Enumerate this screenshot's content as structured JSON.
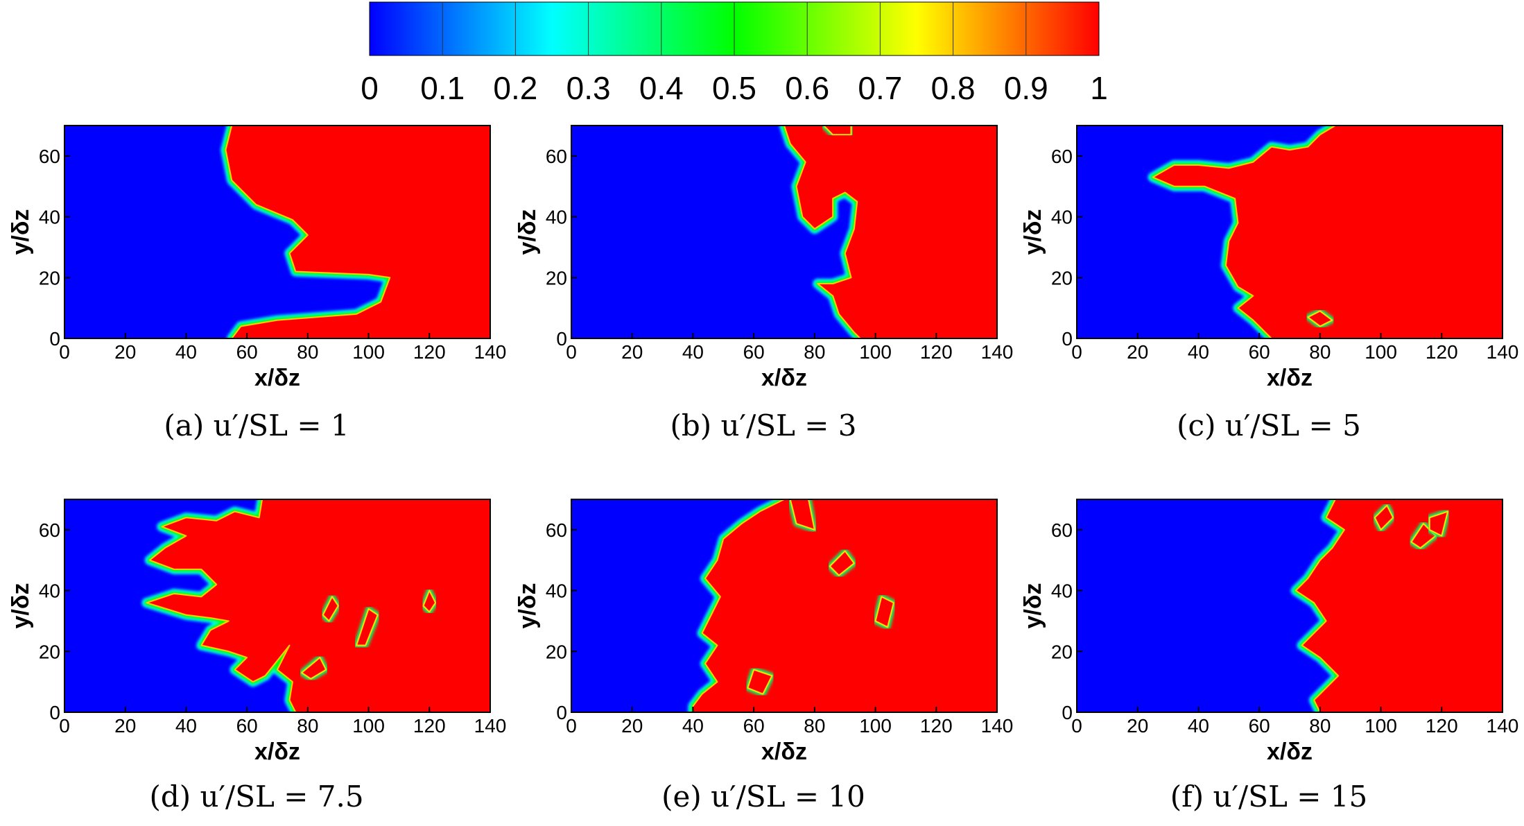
{
  "colorbar": {
    "ticks": [
      "0",
      "0.1",
      "0.2",
      "0.3",
      "0.4",
      "0.5",
      "0.6",
      "0.7",
      "0.8",
      "0.9",
      "1"
    ],
    "colors": [
      "#0000ff",
      "#00ffff",
      "#00ff00",
      "#ffff00",
      "#ff0000"
    ]
  },
  "chart_data": [
    {
      "type": "heatmap",
      "panel": "a",
      "caption": "(a) u′/SL = 1",
      "xlabel": "x/δz",
      "ylabel": "y/δz",
      "xlim": [
        0,
        140
      ],
      "ylim": [
        0,
        70
      ],
      "xticks": [
        "0",
        "20",
        "40",
        "60",
        "80",
        "100",
        "120",
        "140"
      ],
      "yticks": [
        "0",
        "20",
        "40",
        "60"
      ],
      "front": [
        [
          55,
          70
        ],
        [
          53,
          62
        ],
        [
          55,
          52
        ],
        [
          63,
          44
        ],
        [
          75,
          39
        ],
        [
          80,
          34
        ],
        [
          74,
          28
        ],
        [
          76,
          22
        ],
        [
          100,
          21
        ],
        [
          107,
          20
        ],
        [
          104,
          12
        ],
        [
          96,
          8
        ],
        [
          70,
          6
        ],
        [
          58,
          4
        ],
        [
          55,
          0
        ]
      ],
      "pockets": []
    },
    {
      "type": "heatmap",
      "panel": "b",
      "caption": "(b) u′/SL = 3",
      "xlabel": "x/δz",
      "ylabel": "y/δz",
      "xlim": [
        0,
        140
      ],
      "ylim": [
        0,
        70
      ],
      "xticks": [
        "0",
        "20",
        "40",
        "60",
        "80",
        "100",
        "120",
        "140"
      ],
      "yticks": [
        "0",
        "20",
        "40",
        "60"
      ],
      "front": [
        [
          70,
          70
        ],
        [
          72,
          64
        ],
        [
          77,
          58
        ],
        [
          74,
          50
        ],
        [
          76,
          40
        ],
        [
          80,
          36
        ],
        [
          86,
          40
        ],
        [
          86,
          46
        ],
        [
          90,
          48
        ],
        [
          94,
          45
        ],
        [
          93,
          36
        ],
        [
          90,
          28
        ],
        [
          92,
          20
        ],
        [
          86,
          18
        ],
        [
          81,
          18
        ],
        [
          86,
          14
        ],
        [
          88,
          8
        ],
        [
          93,
          2
        ],
        [
          95,
          0
        ]
      ],
      "pockets": [
        [
          [
            83,
            70
          ],
          [
            92,
            70
          ],
          [
            92,
            67
          ],
          [
            86,
            67
          ]
        ]
      ]
    },
    {
      "type": "heatmap",
      "panel": "c",
      "caption": "(c) u′/SL = 5",
      "xlabel": "x/δz",
      "ylabel": "y/δz",
      "xlim": [
        0,
        140
      ],
      "ylim": [
        0,
        70
      ],
      "xticks": [
        "0",
        "20",
        "40",
        "60",
        "80",
        "100",
        "120",
        "140"
      ],
      "yticks": [
        "0",
        "20",
        "40",
        "60"
      ],
      "front": [
        [
          85,
          70
        ],
        [
          80,
          67
        ],
        [
          76,
          63
        ],
        [
          70,
          62
        ],
        [
          64,
          63
        ],
        [
          58,
          58
        ],
        [
          50,
          56
        ],
        [
          40,
          57
        ],
        [
          32,
          57
        ],
        [
          25,
          53
        ],
        [
          32,
          50
        ],
        [
          42,
          50
        ],
        [
          52,
          46
        ],
        [
          53,
          38
        ],
        [
          50,
          32
        ],
        [
          49,
          24
        ],
        [
          53,
          17
        ],
        [
          58,
          14
        ],
        [
          53,
          10
        ],
        [
          58,
          6
        ],
        [
          62,
          2
        ],
        [
          64,
          0
        ]
      ],
      "pockets": [
        [
          [
            76,
            7
          ],
          [
            80,
            4
          ],
          [
            84,
            6
          ],
          [
            80,
            9
          ]
        ]
      ]
    },
    {
      "type": "heatmap",
      "panel": "d",
      "caption": "(d) u′/SL = 7.5",
      "xlabel": "x/δz",
      "ylabel": "y/δz",
      "xlim": [
        0,
        140
      ],
      "ylim": [
        0,
        70
      ],
      "xticks": [
        "0",
        "20",
        "40",
        "60",
        "80",
        "100",
        "120",
        "140"
      ],
      "yticks": [
        "0",
        "20",
        "40",
        "60"
      ],
      "front": [
        [
          65,
          70
        ],
        [
          64,
          64
        ],
        [
          56,
          66
        ],
        [
          50,
          63
        ],
        [
          40,
          64
        ],
        [
          32,
          61
        ],
        [
          40,
          58
        ],
        [
          33,
          54
        ],
        [
          28,
          50
        ],
        [
          36,
          47
        ],
        [
          45,
          47
        ],
        [
          50,
          42
        ],
        [
          45,
          38
        ],
        [
          36,
          39
        ],
        [
          27,
          36
        ],
        [
          40,
          32
        ],
        [
          48,
          31
        ],
        [
          54,
          30
        ],
        [
          48,
          27
        ],
        [
          45,
          22
        ],
        [
          54,
          20
        ],
        [
          60,
          18
        ],
        [
          56,
          14
        ],
        [
          62,
          10
        ],
        [
          66,
          12
        ],
        [
          70,
          17
        ],
        [
          74,
          22
        ],
        [
          70,
          14
        ],
        [
          75,
          10
        ],
        [
          74,
          4
        ],
        [
          76,
          0
        ]
      ],
      "pockets": [
        [
          [
            85,
            32
          ],
          [
            88,
            38
          ],
          [
            90,
            35
          ],
          [
            87,
            30
          ]
        ],
        [
          [
            96,
            22
          ],
          [
            100,
            34
          ],
          [
            103,
            32
          ],
          [
            99,
            22
          ]
        ],
        [
          [
            118,
            35
          ],
          [
            120,
            40
          ],
          [
            122,
            36
          ],
          [
            120,
            33
          ]
        ],
        [
          [
            78,
            13
          ],
          [
            84,
            18
          ],
          [
            86,
            14
          ],
          [
            81,
            11
          ]
        ]
      ]
    },
    {
      "type": "heatmap",
      "panel": "e",
      "caption": "(e) u′/SL = 10",
      "xlabel": "x/δz",
      "ylabel": "y/δz",
      "xlim": [
        0,
        140
      ],
      "ylim": [
        0,
        70
      ],
      "xticks": [
        "0",
        "20",
        "40",
        "60",
        "80",
        "100",
        "120",
        "140"
      ],
      "yticks": [
        "0",
        "20",
        "40",
        "60"
      ],
      "front": [
        [
          70,
          70
        ],
        [
          62,
          66
        ],
        [
          56,
          62
        ],
        [
          50,
          57
        ],
        [
          48,
          50
        ],
        [
          44,
          44
        ],
        [
          49,
          38
        ],
        [
          46,
          32
        ],
        [
          43,
          26
        ],
        [
          48,
          22
        ],
        [
          44,
          16
        ],
        [
          48,
          10
        ],
        [
          43,
          6
        ],
        [
          40,
          2
        ],
        [
          40,
          0
        ]
      ],
      "pockets": [
        [
          [
            72,
            70
          ],
          [
            74,
            62
          ],
          [
            80,
            60
          ],
          [
            78,
            70
          ]
        ],
        [
          [
            85,
            48
          ],
          [
            90,
            53
          ],
          [
            93,
            49
          ],
          [
            88,
            45
          ]
        ],
        [
          [
            100,
            30
          ],
          [
            102,
            38
          ],
          [
            106,
            36
          ],
          [
            104,
            28
          ]
        ],
        [
          [
            58,
            8
          ],
          [
            60,
            14
          ],
          [
            66,
            12
          ],
          [
            63,
            6
          ]
        ]
      ]
    },
    {
      "type": "heatmap",
      "panel": "f",
      "caption": "(f) u′/SL = 15",
      "xlabel": "x/δz",
      "ylabel": "y/δz",
      "xlim": [
        0,
        140
      ],
      "ylim": [
        0,
        70
      ],
      "xticks": [
        "0",
        "20",
        "40",
        "60",
        "80",
        "100",
        "120",
        "140"
      ],
      "yticks": [
        "0",
        "20",
        "40",
        "60"
      ],
      "front": [
        [
          85,
          70
        ],
        [
          82,
          64
        ],
        [
          88,
          60
        ],
        [
          84,
          54
        ],
        [
          80,
          50
        ],
        [
          76,
          44
        ],
        [
          72,
          40
        ],
        [
          78,
          36
        ],
        [
          82,
          30
        ],
        [
          78,
          26
        ],
        [
          74,
          22
        ],
        [
          80,
          18
        ],
        [
          86,
          12
        ],
        [
          82,
          8
        ],
        [
          78,
          4
        ],
        [
          80,
          0
        ]
      ],
      "pockets": [
        [
          [
            98,
            64
          ],
          [
            102,
            68
          ],
          [
            104,
            64
          ],
          [
            100,
            60
          ]
        ],
        [
          [
            110,
            56
          ],
          [
            114,
            62
          ],
          [
            118,
            58
          ],
          [
            113,
            54
          ]
        ],
        [
          [
            116,
            64
          ],
          [
            122,
            66
          ],
          [
            120,
            58
          ],
          [
            116,
            60
          ]
        ]
      ]
    }
  ]
}
